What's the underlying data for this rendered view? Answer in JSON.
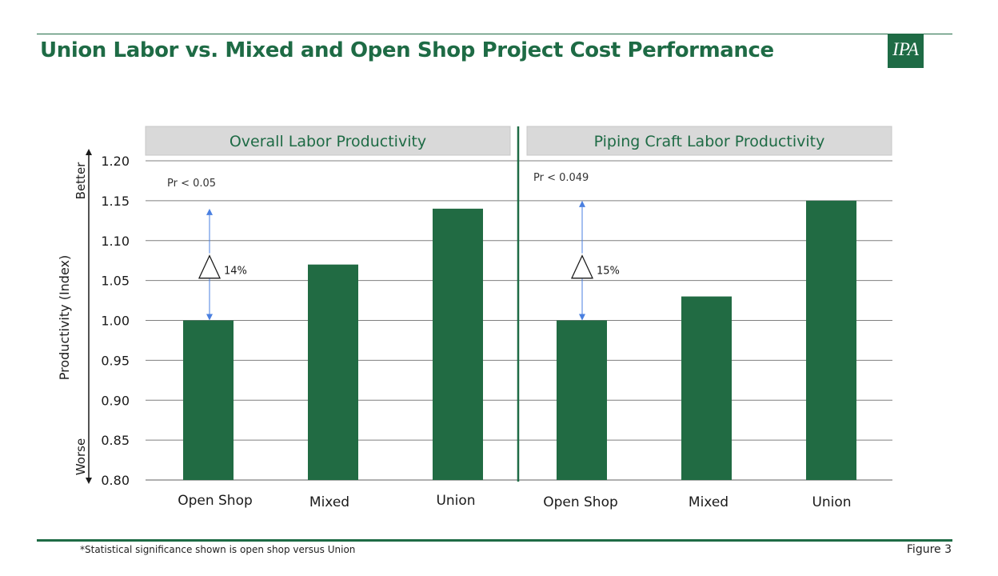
{
  "header": {
    "title": "Union Labor vs. Mixed and Open Shop Project Cost Performance",
    "logo_text": "IPA"
  },
  "footer": {
    "footnote": "*Statistical significance shown is open shop versus Union",
    "figure_label": "Figure 3"
  },
  "colors": {
    "accent": "#1e6b45",
    "bar": "#216b43",
    "panel_header_bg": "#d9d9d9",
    "gridline": "#7f7f7f",
    "arrow": "#4a7fe0"
  },
  "chart_data": {
    "type": "bar",
    "ylabel": "Productivity (Index)",
    "ylim": [
      0.8,
      1.2
    ],
    "ytick_step": 0.05,
    "yticks": [
      "1.20",
      "1.15",
      "1.10",
      "1.05",
      "1.00",
      "0.95",
      "0.90",
      "0.85",
      "0.80"
    ],
    "better_label": "Better",
    "worse_label": "Worse",
    "grid": true,
    "categories": [
      "Open Shop",
      "Mixed",
      "Union"
    ],
    "panels": [
      {
        "title": "Overall Labor Productivity",
        "values": [
          1.0,
          1.07,
          1.14
        ],
        "significance": "Pr < 0.05",
        "delta_label": "14%"
      },
      {
        "title": "Piping Craft Labor Productivity",
        "values": [
          1.0,
          1.03,
          1.15
        ],
        "significance": "Pr < 0.049",
        "delta_label": "15%"
      }
    ]
  }
}
